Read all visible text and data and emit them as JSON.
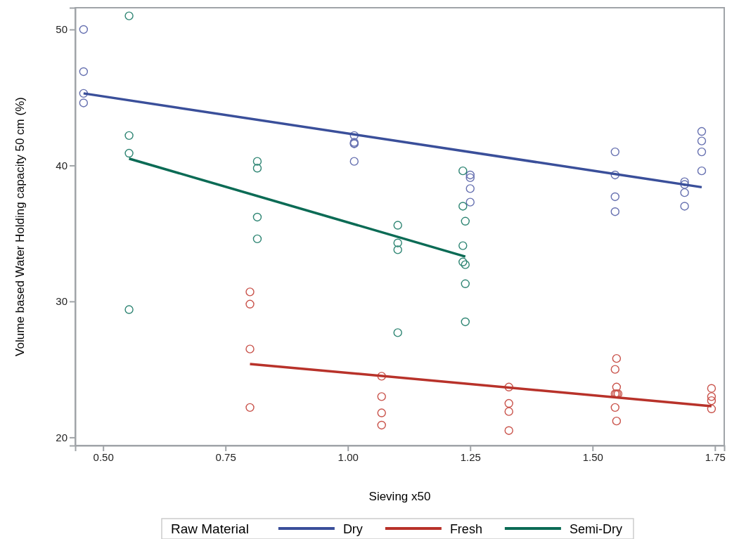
{
  "chart_data": {
    "type": "scatter",
    "xlabel": "Sieving x50",
    "ylabel": "Volume based Water Holding capacity  50 cm (%)",
    "legend_title": "Raw Material",
    "legend": "bottom",
    "grid": false,
    "marker": "circle",
    "xlim": [
      0.443,
      1.769
    ],
    "ylim": [
      19.4,
      51.6
    ],
    "xticks": [
      {
        "value": 0.5,
        "label": "0.50"
      },
      {
        "value": 0.75,
        "label": "0.75"
      },
      {
        "value": 1,
        "label": "1.00"
      },
      {
        "value": 1.25,
        "label": "1.25"
      },
      {
        "value": 1.5,
        "label": "1.50"
      },
      {
        "value": 1.75,
        "label": "1.75"
      }
    ],
    "yticks": [
      20,
      30,
      40,
      50
    ],
    "series": [
      {
        "color": "#6670b0",
        "x": [
          0.46,
          0.46,
          0.46,
          0.46,
          1.013,
          1.013,
          1.013,
          1.013,
          1.013,
          1.25,
          1.25,
          1.25,
          1.25,
          1.546,
          1.546,
          1.546,
          1.546,
          1.688,
          1.688,
          1.688,
          1.688,
          1.723,
          1.723,
          1.723,
          1.723
        ],
        "values": [
          50.0,
          46.9,
          45.3,
          44.6,
          42.2,
          41.7,
          41.6,
          41.6,
          40.3,
          39.3,
          39.1,
          38.3,
          37.3,
          41.0,
          39.3,
          37.7,
          36.6,
          38.8,
          38.6,
          38.0,
          37.0,
          42.5,
          41.8,
          41.0,
          39.6
        ]
      },
      {
        "color": "#2e8573",
        "x": [
          0.553,
          0.553,
          0.553,
          0.553,
          0.815,
          0.815,
          0.815,
          0.815,
          1.102,
          1.102,
          1.102,
          1.102,
          1.235,
          1.235,
          1.24,
          1.235,
          1.235,
          1.24,
          1.24,
          1.24
        ],
        "values": [
          51.0,
          42.2,
          40.9,
          29.4,
          40.3,
          39.8,
          36.2,
          34.6,
          35.6,
          34.3,
          33.8,
          27.7,
          39.6,
          37.0,
          35.9,
          34.1,
          32.9,
          32.7,
          31.3,
          28.5
        ]
      },
      {
        "color": "#c9534b",
        "x": [
          0.8,
          0.8,
          0.8,
          0.8,
          1.069,
          1.069,
          1.069,
          1.069,
          1.329,
          1.329,
          1.329,
          1.329,
          1.549,
          1.546,
          1.549,
          1.546,
          1.549,
          1.552,
          1.546,
          1.549,
          1.743,
          1.743,
          1.743,
          1.743
        ],
        "values": [
          30.7,
          29.8,
          26.5,
          22.2,
          24.5,
          23.0,
          21.8,
          20.9,
          23.7,
          22.5,
          21.9,
          20.5,
          25.8,
          25.0,
          23.7,
          23.2,
          23.2,
          23.2,
          22.2,
          21.2,
          23.6,
          23.0,
          22.7,
          22.1
        ]
      },
      {
        "type": "line",
        "marker": "none",
        "name": "Dry",
        "color": "#3a4f9a",
        "x": [
          0.46,
          1.723
        ],
        "values": [
          45.3,
          38.4
        ]
      },
      {
        "type": "line",
        "marker": "none",
        "name": "Fresh",
        "color": "#b8322a",
        "x": [
          0.8,
          1.743
        ],
        "values": [
          25.4,
          22.3
        ]
      },
      {
        "type": "line",
        "marker": "none",
        "name": "Semi-Dry",
        "color": "#0b6b55",
        "x": [
          0.553,
          1.24
        ],
        "values": [
          40.5,
          33.3
        ]
      }
    ]
  }
}
